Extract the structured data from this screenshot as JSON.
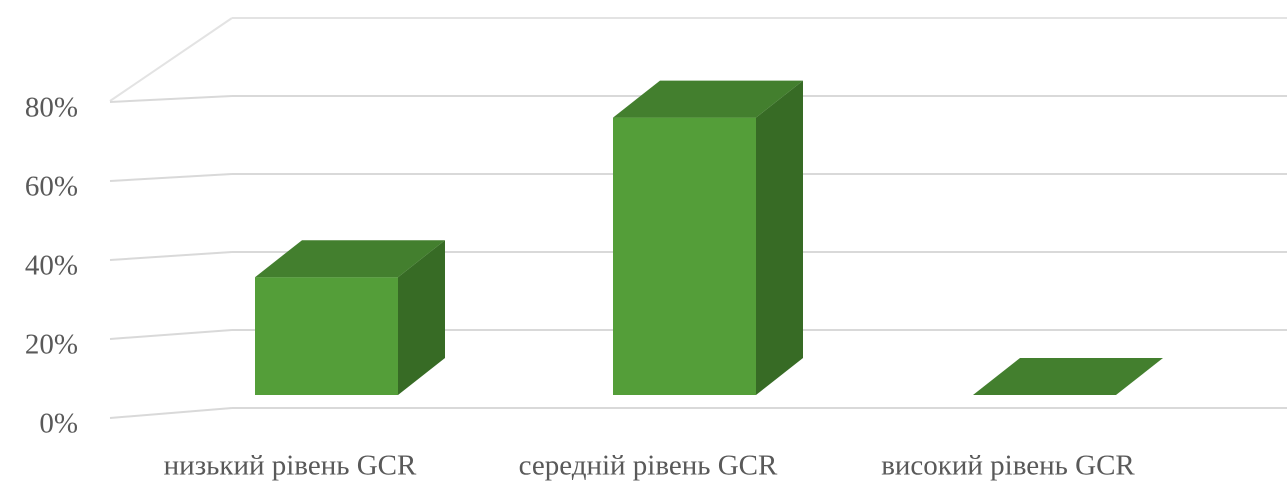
{
  "chart_data": {
    "type": "bar3d",
    "categories": [
      "низький рівень GCR",
      "середній рівень GCR",
      "високий рівень GCR"
    ],
    "values": [
      31,
      73,
      0
    ],
    "color": "#549e39",
    "ylim": [
      0,
      100
    ],
    "yticks": [
      {
        "value": 0,
        "label": "0%"
      },
      {
        "value": 20,
        "label": "20%"
      },
      {
        "value": 40,
        "label": "40%"
      },
      {
        "value": 60,
        "label": "60%"
      },
      {
        "value": 80,
        "label": "80%"
      }
    ],
    "grid": true
  }
}
